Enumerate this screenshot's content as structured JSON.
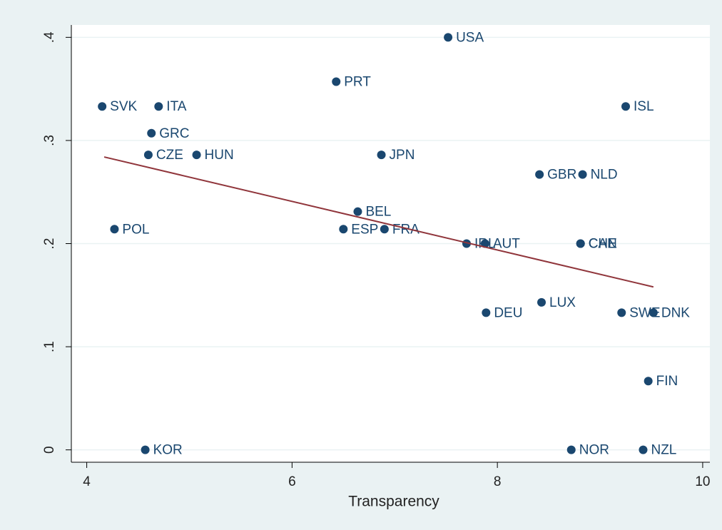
{
  "chart_data": {
    "type": "scatter",
    "xlabel": "Transparency",
    "point_labels": [
      "USA",
      "PRT",
      "SVK",
      "ITA",
      "ISL",
      "GRC",
      "CZE",
      "HUN",
      "JPN",
      "GBR",
      "NLD",
      "BEL",
      "POL",
      "ESP",
      "FRA",
      "IRL",
      "AUT",
      "CAN",
      "CHE",
      "DEU",
      "LUX",
      "SWE",
      "DNK",
      "FIN",
      "KOR",
      "NOR",
      "NZL"
    ],
    "x": [
      7.52,
      6.43,
      4.15,
      4.7,
      9.25,
      4.63,
      4.6,
      5.07,
      6.87,
      8.41,
      8.83,
      6.64,
      4.27,
      6.5,
      6.9,
      7.7,
      7.88,
      8.81,
      8.81,
      7.89,
      8.43,
      9.21,
      9.52,
      9.47,
      4.57,
      8.72,
      9.42
    ],
    "values": [
      0.4,
      0.357,
      0.333,
      0.333,
      0.333,
      0.307,
      0.286,
      0.286,
      0.286,
      0.267,
      0.267,
      0.231,
      0.214,
      0.214,
      0.214,
      0.2,
      0.2,
      0.2,
      0.2,
      0.133,
      0.143,
      0.133,
      0.133,
      0.0667,
      0,
      0,
      0
    ],
    "color": "#1a476f",
    "fit": {
      "x": [
        4.17,
        9.52
      ],
      "values": [
        0.284,
        0.158
      ],
      "color": "#90353b"
    },
    "xlim": [
      3.85,
      10.07
    ],
    "xticks": [
      4,
      6,
      8,
      10
    ],
    "ylim": [
      -0.012,
      0.412
    ],
    "yticks": [
      0,
      {
        "value": 0.1,
        "label": ".1"
      },
      {
        "value": 0.2,
        "label": ".2"
      },
      {
        "value": 0.3,
        "label": ".3"
      },
      {
        "value": 0.4,
        "label": ".4"
      }
    ],
    "grid": true
  }
}
